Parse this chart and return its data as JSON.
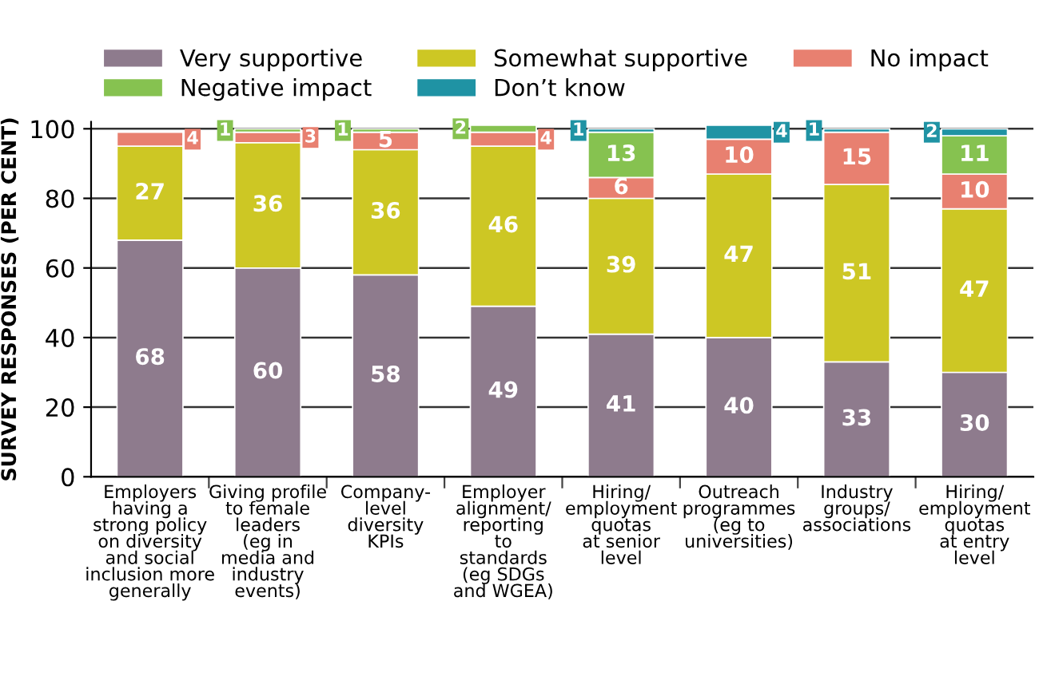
{
  "chart_data": {
    "type": "bar",
    "stacked": true,
    "ylabel": "SURVEY RESPONSES (PER CENT)",
    "categories": [
      "Employers\nhaving a\nstrong policy\non diversity\nand social\ninclusion more\ngenerally",
      "Giving profile\nto female\nleaders\n(eg in\nmedia and\nindustry\nevents)",
      "Company-\nlevel\ndiversity\nKPIs",
      "Employer\nalignment/\nreporting\nto\nstandards\n(eg SDGs\nand WGEA)",
      "Hiring/\nemployment\nquotas\nat senior\nlevel",
      "Outreach\nprogrammes\n(eg to\nuniversities)",
      "Industry\ngroups/\nassociations",
      "Hiring/\nemployment\nquotas\nat entry\nlevel"
    ],
    "series": [
      {
        "name": "Very supportive",
        "color": "#8e7b8d",
        "values": [
          68,
          60,
          58,
          49,
          41,
          40,
          33,
          30
        ]
      },
      {
        "name": "Somewhat supportive",
        "color": "#cdc724",
        "values": [
          27,
          36,
          36,
          46,
          39,
          47,
          51,
          47
        ]
      },
      {
        "name": "No impact",
        "color": "#e88070",
        "values": [
          4,
          3,
          5,
          4,
          6,
          10,
          15,
          10
        ]
      },
      {
        "name": "Negative impact",
        "color": "#86c250",
        "values": [
          null,
          1,
          1,
          2,
          13,
          null,
          null,
          11
        ]
      },
      {
        "name": "Don’t know",
        "color": "#1f93a4",
        "values": [
          null,
          null,
          null,
          null,
          1,
          4,
          1,
          2
        ]
      }
    ],
    "data_labels": true,
    "ylim": [
      0,
      102
    ],
    "yticks": [
      0,
      20,
      40,
      60,
      80,
      100
    ],
    "grid": "y",
    "legend": "top"
  }
}
